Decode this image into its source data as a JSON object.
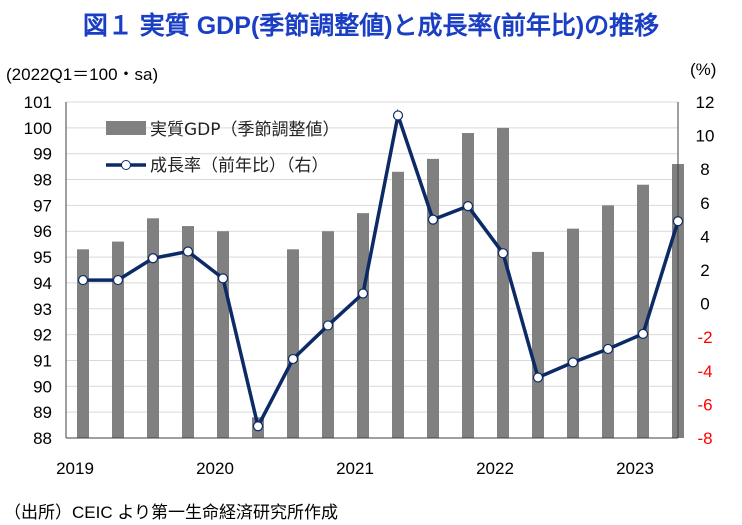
{
  "title": "図１ 実質 GDP(季節調整値)と成長率(前年比)の推移",
  "unit_left": "(2022Q1＝100・sa)",
  "unit_right": "(%)",
  "source": "（出所）CEIC より第一生命経済研究所作成",
  "colors": {
    "bar": "#808080",
    "line": "#0b2a66",
    "negative_tick": "#ff0000",
    "title": "#1a3fc4"
  },
  "chart_data": {
    "type": "bar+line",
    "categories": [
      "2019Q1",
      "2019Q2",
      "2019Q3",
      "2019Q4",
      "2020Q1",
      "2020Q2",
      "2020Q3",
      "2020Q4",
      "2021Q1",
      "2021Q2",
      "2021Q3",
      "2021Q4",
      "2022Q1",
      "2022Q2",
      "2022Q3",
      "2022Q4",
      "2023Q1",
      "2023Q2"
    ],
    "x_tick_labels": [
      "2019",
      "2020",
      "2021",
      "2022",
      "2023"
    ],
    "series": [
      {
        "name": "実質GDP（季節調整値）",
        "type": "bar",
        "axis": "left",
        "values": [
          95.3,
          95.6,
          96.5,
          96.2,
          96.0,
          88.8,
          95.3,
          96.0,
          96.7,
          98.3,
          98.8,
          99.8,
          100.0,
          95.2,
          96.1,
          97.0,
          97.8,
          98.6
        ]
      },
      {
        "name": "成長率（前年比）（右）",
        "type": "line",
        "axis": "right",
        "values": [
          1.4,
          1.4,
          2.7,
          3.1,
          1.5,
          -7.3,
          -3.3,
          -1.3,
          0.6,
          11.2,
          5.0,
          5.8,
          3.0,
          -4.4,
          -3.5,
          -2.7,
          -1.8,
          4.9
        ]
      }
    ],
    "ylim_left": [
      88,
      101
    ],
    "ylim_right": [
      -8,
      12
    ],
    "left_ticks": [
      "101",
      "100",
      "99",
      "98",
      "97",
      "96",
      "95",
      "94",
      "93",
      "92",
      "91",
      "90",
      "89",
      "88"
    ],
    "right_ticks": [
      "12",
      "10",
      "8",
      "6",
      "4",
      "2",
      "0",
      "-2",
      "-4",
      "-6",
      "-8"
    ],
    "grid": true,
    "legend_placement": "top-left"
  }
}
